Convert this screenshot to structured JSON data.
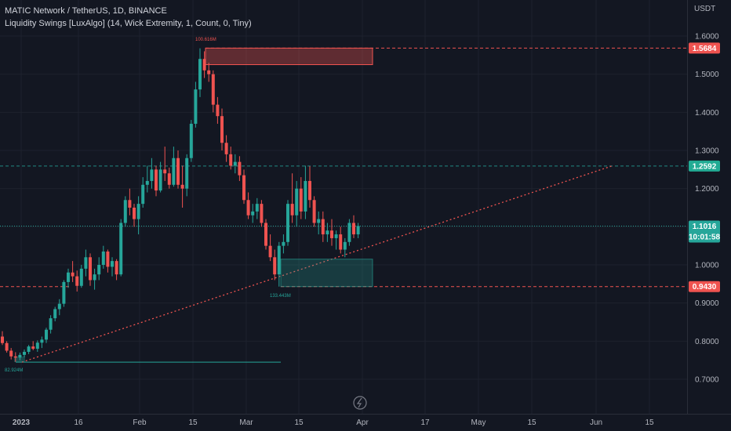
{
  "header": {
    "symbol_line": "MATIC Network / TetherUS, 1D, BINANCE",
    "indicator_line": "Liquidity Swings [LuxAlgo] (14, Wick Extremity, 1, Count, 0, Tiny)"
  },
  "axis_unit": "USDT",
  "price_ticks": [
    "1.6000",
    "1.5000",
    "1.4000",
    "1.3000",
    "1.2000",
    "1.1000",
    "1.0000",
    "0.9000",
    "0.8000",
    "0.7000"
  ],
  "time_ticks": [
    "2023",
    "16",
    "Feb",
    "15",
    "Mar",
    "15",
    "Apr",
    "17",
    "May",
    "15",
    "Jun",
    "15"
  ],
  "price_labels": {
    "high": "1.5684",
    "mid": "1.2592",
    "last": "1.1016",
    "countdown": "10:01:58",
    "low": "0.9430"
  },
  "annotations": {
    "top_zone_count": "100.616M",
    "bottom_zone_count": "133.443M",
    "left_count": "82.924M"
  },
  "colors": {
    "up": "#26a69a",
    "down": "#ef5350",
    "background": "#131722",
    "grid": "#1e222d"
  },
  "chart_data": {
    "type": "candlestick",
    "timeframe": "1D",
    "candles_ohlc": [
      [
        0.812,
        0.826,
        0.79,
        0.795
      ],
      [
        0.795,
        0.8,
        0.77,
        0.775
      ],
      [
        0.775,
        0.782,
        0.752,
        0.76
      ],
      [
        0.76,
        0.771,
        0.746,
        0.757
      ],
      [
        0.757,
        0.77,
        0.75,
        0.764
      ],
      [
        0.764,
        0.778,
        0.758,
        0.772
      ],
      [
        0.772,
        0.79,
        0.766,
        0.786
      ],
      [
        0.786,
        0.8,
        0.776,
        0.78
      ],
      [
        0.78,
        0.802,
        0.772,
        0.796
      ],
      [
        0.796,
        0.812,
        0.782,
        0.804
      ],
      [
        0.804,
        0.835,
        0.795,
        0.83
      ],
      [
        0.83,
        0.868,
        0.82,
        0.86
      ],
      [
        0.86,
        0.89,
        0.852,
        0.884
      ],
      [
        0.884,
        0.91,
        0.868,
        0.898
      ],
      [
        0.898,
        0.96,
        0.89,
        0.955
      ],
      [
        0.955,
        0.99,
        0.94,
        0.98
      ],
      [
        0.98,
        1.01,
        0.955,
        0.97
      ],
      [
        0.97,
        0.985,
        0.93,
        0.945
      ],
      [
        0.945,
        1.0,
        0.94,
        0.99
      ],
      [
        0.99,
        1.04,
        0.97,
        1.02
      ],
      [
        1.02,
        1.03,
        0.945,
        0.96
      ],
      [
        0.96,
        0.99,
        0.935,
        0.975
      ],
      [
        0.975,
        1.02,
        0.96,
        1.0
      ],
      [
        1.0,
        1.05,
        0.99,
        1.035
      ],
      [
        1.035,
        1.04,
        0.98,
        0.995
      ],
      [
        0.995,
        1.02,
        0.97,
        1.01
      ],
      [
        1.01,
        1.015,
        0.96,
        0.975
      ],
      [
        0.975,
        1.12,
        0.97,
        1.11
      ],
      [
        1.11,
        1.18,
        1.1,
        1.17
      ],
      [
        1.17,
        1.2,
        1.13,
        1.15
      ],
      [
        1.15,
        1.16,
        1.1,
        1.12
      ],
      [
        1.12,
        1.18,
        1.08,
        1.16
      ],
      [
        1.16,
        1.23,
        1.15,
        1.21
      ],
      [
        1.21,
        1.26,
        1.19,
        1.22
      ],
      [
        1.22,
        1.28,
        1.2,
        1.25
      ],
      [
        1.25,
        1.26,
        1.18,
        1.195
      ],
      [
        1.195,
        1.27,
        1.19,
        1.25
      ],
      [
        1.25,
        1.31,
        1.22,
        1.24
      ],
      [
        1.24,
        1.255,
        1.2,
        1.21
      ],
      [
        1.21,
        1.31,
        1.205,
        1.28
      ],
      [
        1.28,
        1.3,
        1.2,
        1.21
      ],
      [
        1.21,
        1.26,
        1.15,
        1.2
      ],
      [
        1.2,
        1.29,
        1.18,
        1.28
      ],
      [
        1.28,
        1.38,
        1.27,
        1.37
      ],
      [
        1.37,
        1.48,
        1.36,
        1.46
      ],
      [
        1.46,
        1.568,
        1.44,
        1.54
      ],
      [
        1.54,
        1.56,
        1.49,
        1.51
      ],
      [
        1.51,
        1.53,
        1.48,
        1.5
      ],
      [
        1.5,
        1.51,
        1.4,
        1.42
      ],
      [
        1.42,
        1.44,
        1.37,
        1.39
      ],
      [
        1.39,
        1.41,
        1.3,
        1.32
      ],
      [
        1.32,
        1.34,
        1.27,
        1.29
      ],
      [
        1.29,
        1.31,
        1.25,
        1.26
      ],
      [
        1.26,
        1.29,
        1.24,
        1.27
      ],
      [
        1.27,
        1.285,
        1.22,
        1.235
      ],
      [
        1.235,
        1.25,
        1.16,
        1.17
      ],
      [
        1.17,
        1.19,
        1.12,
        1.13
      ],
      [
        1.13,
        1.16,
        1.11,
        1.14
      ],
      [
        1.14,
        1.175,
        1.12,
        1.16
      ],
      [
        1.16,
        1.17,
        1.1,
        1.11
      ],
      [
        1.11,
        1.12,
        1.04,
        1.05
      ],
      [
        1.05,
        1.08,
        1.01,
        1.02
      ],
      [
        1.02,
        1.04,
        0.96,
        0.975
      ],
      [
        0.975,
        1.06,
        0.943,
        1.05
      ],
      [
        1.05,
        1.08,
        1.03,
        1.06
      ],
      [
        1.06,
        1.17,
        1.05,
        1.16
      ],
      [
        1.16,
        1.24,
        1.11,
        1.13
      ],
      [
        1.13,
        1.22,
        1.1,
        1.2
      ],
      [
        1.2,
        1.23,
        1.12,
        1.14
      ],
      [
        1.14,
        1.26,
        1.12,
        1.22
      ],
      [
        1.22,
        1.259,
        1.15,
        1.17
      ],
      [
        1.17,
        1.18,
        1.1,
        1.11
      ],
      [
        1.11,
        1.14,
        1.08,
        1.12
      ],
      [
        1.12,
        1.14,
        1.06,
        1.08
      ],
      [
        1.08,
        1.11,
        1.06,
        1.09
      ],
      [
        1.09,
        1.12,
        1.05,
        1.07
      ],
      [
        1.07,
        1.09,
        1.04,
        1.08
      ],
      [
        1.08,
        1.1,
        1.03,
        1.04
      ],
      [
        1.04,
        1.07,
        1.02,
        1.06
      ],
      [
        1.06,
        1.12,
        1.05,
        1.11
      ],
      [
        1.11,
        1.13,
        1.07,
        1.08
      ],
      [
        1.08,
        1.11,
        1.07,
        1.102
      ]
    ],
    "last_price": 1.1016,
    "horizontal_levels": [
      1.5684,
      1.2592,
      0.943
    ],
    "trendline": {
      "from": {
        "time": "2023-01-03",
        "price": 0.745
      },
      "to": {
        "time": "2023-06-05",
        "price": 1.2592
      }
    },
    "liquidity_zones": [
      {
        "side": "high",
        "top": 1.5684,
        "bottom": 1.525,
        "count": "100.616M"
      },
      {
        "side": "low",
        "top": 1.015,
        "bottom": 0.943,
        "count": "133.443M"
      }
    ],
    "ylim": [
      0.66,
      1.67
    ],
    "y_scale": "linear"
  }
}
